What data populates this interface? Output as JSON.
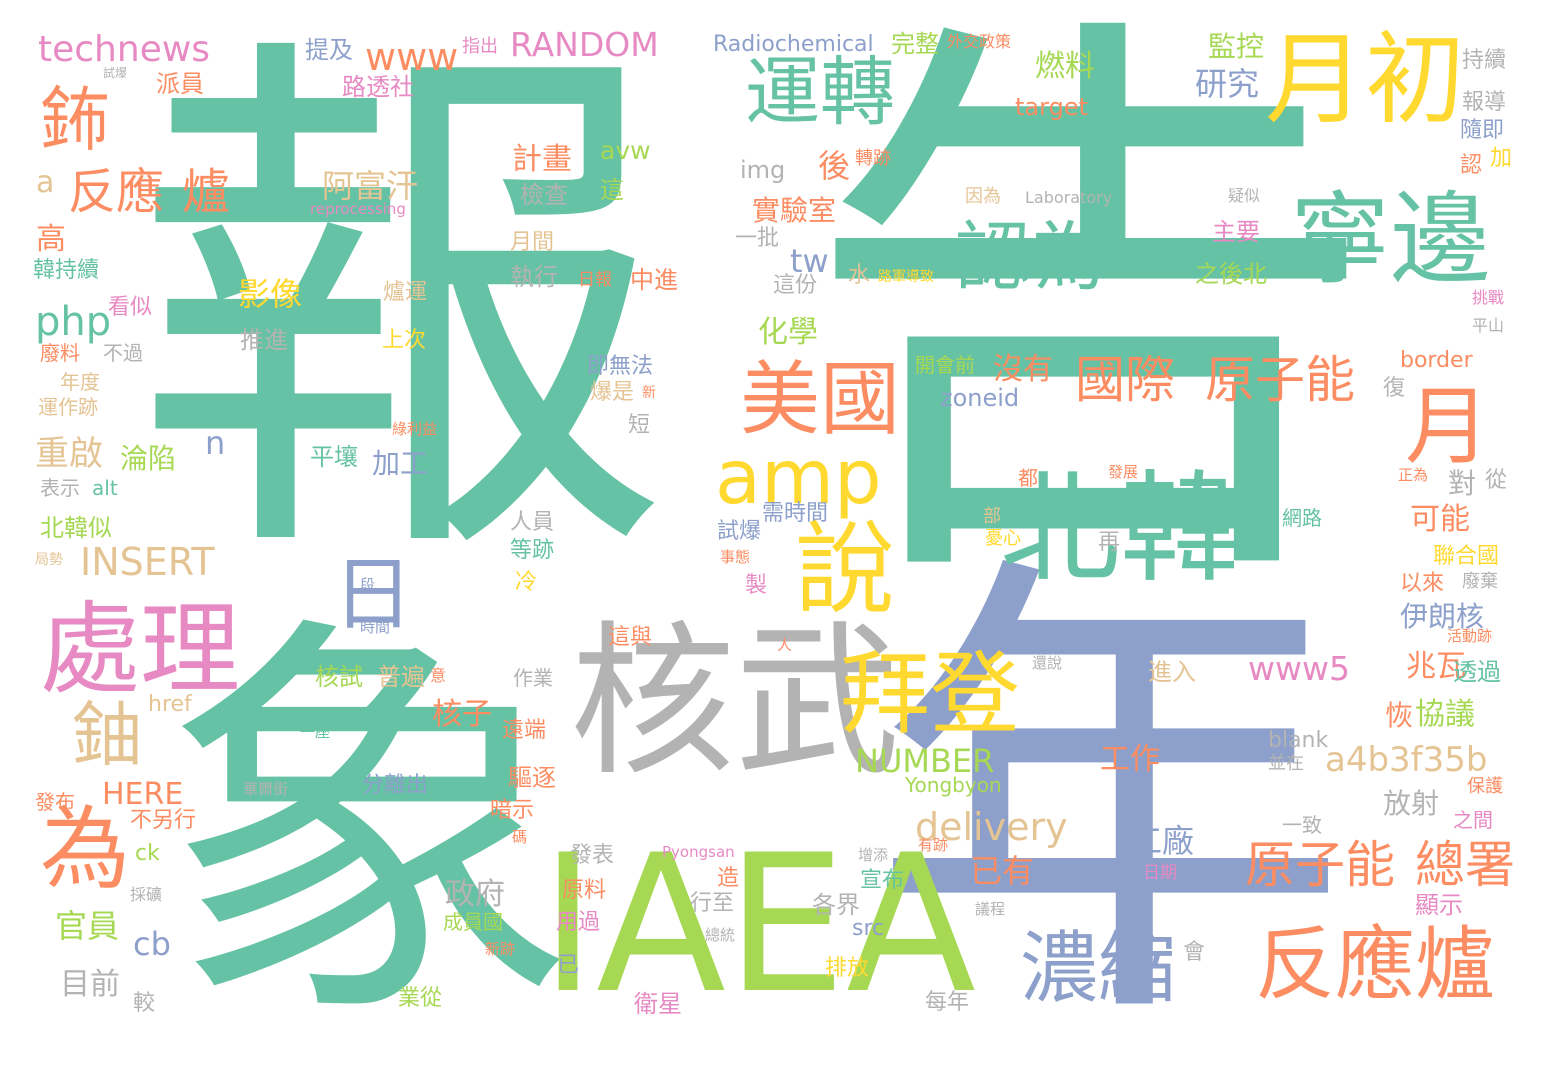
{
  "words": [
    {
      "text": "報",
      "color": "#66c2a5"
    },
    {
      "text": "告",
      "color": "#66c2a5"
    },
    {
      "text": "象",
      "color": "#66c2a5"
    },
    {
      "text": "年",
      "color": "#8da0cb"
    },
    {
      "text": "IAEA",
      "color": "#a6d854"
    },
    {
      "text": "核武",
      "color": "#b3b3b3"
    },
    {
      "text": "北韓",
      "color": "#66c2a5"
    },
    {
      "text": "寧邊",
      "color": "#66c2a5"
    },
    {
      "text": "運轉",
      "color": "#66c2a5"
    },
    {
      "text": "月初",
      "color": "#ffd92f"
    },
    {
      "text": "認為",
      "color": "#66c2a5"
    },
    {
      "text": "處理",
      "color": "#e78ac3"
    },
    {
      "text": "拜登",
      "color": "#ffd92f"
    },
    {
      "text": "說",
      "color": "#ffd92f"
    },
    {
      "text": "為",
      "color": "#fc8d62"
    },
    {
      "text": "美國",
      "color": "#fc8d62"
    },
    {
      "text": "amp",
      "color": "#ffd92f"
    },
    {
      "text": "反應爐",
      "color": "#fc8d62"
    },
    {
      "text": "濃縮",
      "color": "#8da0cb"
    },
    {
      "text": "月",
      "color": "#fc8d62"
    },
    {
      "text": "鈾",
      "color": "#e5c494"
    },
    {
      "text": "鈽",
      "color": "#fc8d62"
    },
    {
      "text": "日",
      "color": "#8da0cb"
    },
    {
      "text": "國際",
      "color": "#fc8d62"
    },
    {
      "text": "原子能",
      "color": "#fc8d62"
    },
    {
      "text": "原子能",
      "color": "#fc8d62"
    },
    {
      "text": "總署",
      "color": "#fc8d62"
    },
    {
      "text": "反應",
      "color": "#fc8d62"
    },
    {
      "text": "爐",
      "color": "#fc8d62"
    },
    {
      "text": "technews",
      "color": "#e78ac3"
    },
    {
      "text": "www",
      "color": "#fc8d62"
    },
    {
      "text": "RANDOM",
      "color": "#e78ac3"
    },
    {
      "text": "Radiochemical",
      "color": "#8da0cb"
    },
    {
      "text": "完整",
      "color": "#a6d854"
    },
    {
      "text": "外交政策",
      "color": "#fc8d62"
    },
    {
      "text": "監控",
      "color": "#a6d854"
    },
    {
      "text": "持續",
      "color": "#b3b3b3"
    },
    {
      "text": "燃料",
      "color": "#a6d854"
    },
    {
      "text": "研究",
      "color": "#8da0cb"
    },
    {
      "text": "target",
      "color": "#fc8d62"
    },
    {
      "text": "報導",
      "color": "#b3b3b3"
    },
    {
      "text": "隨即",
      "color": "#8da0cb"
    },
    {
      "text": "提及",
      "color": "#8da0cb"
    },
    {
      "text": "指出",
      "color": "#e78ac3"
    },
    {
      "text": "路透社",
      "color": "#e78ac3"
    },
    {
      "text": "派員",
      "color": "#fc8d62"
    },
    {
      "text": "試爆",
      "color": "#b3b3b3"
    },
    {
      "text": "計畫",
      "color": "#fc8d62"
    },
    {
      "text": "avw",
      "color": "#a6d854"
    },
    {
      "text": "img",
      "color": "#b3b3b3"
    },
    {
      "text": "後",
      "color": "#fc8d62"
    },
    {
      "text": "轉跡",
      "color": "#fc8d62"
    },
    {
      "text": "檢查",
      "color": "#b3b3b3"
    },
    {
      "text": "這",
      "color": "#a6d854"
    },
    {
      "text": "阿富汗",
      "color": "#e5c494"
    },
    {
      "text": "reprocessing",
      "color": "#e78ac3"
    },
    {
      "text": "實驗室",
      "color": "#fc8d62"
    },
    {
      "text": "因為",
      "color": "#e5c494"
    },
    {
      "text": "Laboratory",
      "color": "#b3b3b3"
    },
    {
      "text": "疑似",
      "color": "#b3b3b3"
    },
    {
      "text": "主要",
      "color": "#e78ac3"
    },
    {
      "text": "認",
      "color": "#fc8d62"
    },
    {
      "text": "加",
      "color": "#ffd92f"
    },
    {
      "text": "a",
      "color": "#e5c494"
    },
    {
      "text": "高",
      "color": "#fc8d62"
    },
    {
      "text": "月間",
      "color": "#e5c494"
    },
    {
      "text": "一批",
      "color": "#b3b3b3"
    },
    {
      "text": "韓持續",
      "color": "#66c2a5"
    },
    {
      "text": "執行",
      "color": "#b3b3b3"
    },
    {
      "text": "日報",
      "color": "#fc8d62"
    },
    {
      "text": "中進",
      "color": "#fc8d62"
    },
    {
      "text": "tw",
      "color": "#8da0cb"
    },
    {
      "text": "水",
      "color": "#e5c494"
    },
    {
      "text": "路軍導致",
      "color": "#ffd92f"
    },
    {
      "text": "之後北",
      "color": "#a6d854"
    },
    {
      "text": "影像",
      "color": "#ffd92f"
    },
    {
      "text": "爐運",
      "color": "#e5c494"
    },
    {
      "text": "這份",
      "color": "#b3b3b3"
    },
    {
      "text": "挑戰",
      "color": "#e78ac3"
    },
    {
      "text": "php",
      "color": "#66c2a5"
    },
    {
      "text": "看似",
      "color": "#e78ac3"
    },
    {
      "text": "化學",
      "color": "#a6d854"
    },
    {
      "text": "平山",
      "color": "#b3b3b3"
    },
    {
      "text": "推進",
      "color": "#b3b3b3"
    },
    {
      "text": "上次",
      "color": "#ffd92f"
    },
    {
      "text": "即無法",
      "color": "#8da0cb"
    },
    {
      "text": "沒有",
      "color": "#fc8d62"
    },
    {
      "text": "開會前",
      "color": "#a6d854"
    },
    {
      "text": "border",
      "color": "#fc8d62"
    },
    {
      "text": "廢料",
      "color": "#fc8d62"
    },
    {
      "text": "不過",
      "color": "#b3b3b3"
    },
    {
      "text": "爆是",
      "color": "#e5c494"
    },
    {
      "text": "新",
      "color": "#fc8d62"
    },
    {
      "text": "zoneid",
      "color": "#8da0cb"
    },
    {
      "text": "復",
      "color": "#b3b3b3"
    },
    {
      "text": "年度",
      "color": "#e5c494"
    },
    {
      "text": "運作跡",
      "color": "#e5c494"
    },
    {
      "text": "短",
      "color": "#b3b3b3"
    },
    {
      "text": "重啟",
      "color": "#e5c494"
    },
    {
      "text": "n",
      "color": "#8da0cb"
    },
    {
      "text": "綠利益",
      "color": "#fc8d62"
    },
    {
      "text": "淪陷",
      "color": "#a6d854"
    },
    {
      "text": "平壤",
      "color": "#66c2a5"
    },
    {
      "text": "加工",
      "color": "#8da0cb"
    },
    {
      "text": "表示",
      "color": "#b3b3b3"
    },
    {
      "text": "alt",
      "color": "#66c2a5"
    },
    {
      "text": "都",
      "color": "#fc8d62"
    },
    {
      "text": "發展",
      "color": "#fc8d62"
    },
    {
      "text": "正為",
      "color": "#fc8d62"
    },
    {
      "text": "對",
      "color": "#b3b3b3"
    },
    {
      "text": "從",
      "color": "#b3b3b3"
    },
    {
      "text": "北韓似",
      "color": "#a6d854"
    },
    {
      "text": "人員",
      "color": "#b3b3b3"
    },
    {
      "text": "需時間",
      "color": "#8da0cb"
    },
    {
      "text": "網路",
      "color": "#66c2a5"
    },
    {
      "text": "可能",
      "color": "#fc8d62"
    },
    {
      "text": "局勢",
      "color": "#e5c494"
    },
    {
      "text": "INSERT",
      "color": "#e5c494"
    },
    {
      "text": "等跡",
      "color": "#66c2a5"
    },
    {
      "text": "試爆",
      "color": "#8da0cb"
    },
    {
      "text": "部",
      "color": "#e5c494"
    },
    {
      "text": "憂心",
      "color": "#ffd92f"
    },
    {
      "text": "再",
      "color": "#b3b3b3"
    },
    {
      "text": "聯合國",
      "color": "#ffd92f"
    },
    {
      "text": "以來",
      "color": "#fc8d62"
    },
    {
      "text": "廢棄",
      "color": "#b3b3b3"
    },
    {
      "text": "冷",
      "color": "#ffd92f"
    },
    {
      "text": "事態",
      "color": "#fc8d62"
    },
    {
      "text": "製",
      "color": "#e78ac3"
    },
    {
      "text": "段",
      "color": "#8da0cb"
    },
    {
      "text": "時間",
      "color": "#8da0cb"
    },
    {
      "text": "伊朗核",
      "color": "#8da0cb"
    },
    {
      "text": "這與",
      "color": "#fc8d62"
    },
    {
      "text": "人",
      "color": "#fc8d62"
    },
    {
      "text": "活動跡",
      "color": "#fc8d62"
    },
    {
      "text": "www5",
      "color": "#e78ac3"
    },
    {
      "text": "兆瓦",
      "color": "#fc8d62"
    },
    {
      "text": "進入",
      "color": "#e5c494"
    },
    {
      "text": "透過",
      "color": "#66c2a5"
    },
    {
      "text": "核試",
      "color": "#a6d854"
    },
    {
      "text": "普遍",
      "color": "#e5c494"
    },
    {
      "text": "意",
      "color": "#fc8d62"
    },
    {
      "text": "作業",
      "color": "#b3b3b3"
    },
    {
      "text": "還說",
      "color": "#b3b3b3"
    },
    {
      "text": "協議",
      "color": "#a6d854"
    },
    {
      "text": "核子",
      "color": "#fc8d62"
    },
    {
      "text": "恢",
      "color": "#fc8d62"
    },
    {
      "text": "href",
      "color": "#e5c494"
    },
    {
      "text": "遠端",
      "color": "#fc8d62"
    },
    {
      "text": "一座",
      "color": "#66c2a5"
    },
    {
      "text": "a4b3f35b",
      "color": "#e5c494"
    },
    {
      "text": "NUMBER",
      "color": "#a6d854"
    },
    {
      "text": "blank",
      "color": "#b3b3b3"
    },
    {
      "text": "工作",
      "color": "#fc8d62"
    },
    {
      "text": "並在",
      "color": "#b3b3b3"
    },
    {
      "text": "Yongbyon",
      "color": "#a6d854"
    },
    {
      "text": "驅逐",
      "color": "#fc8d62"
    },
    {
      "text": "HERE",
      "color": "#fc8d62"
    },
    {
      "text": "華爾街",
      "color": "#b3b3b3"
    },
    {
      "text": "分離出",
      "color": "#8da0cb"
    },
    {
      "text": "發布",
      "color": "#fc8d62"
    },
    {
      "text": "放射",
      "color": "#b3b3b3"
    },
    {
      "text": "保護",
      "color": "#fc8d62"
    },
    {
      "text": "暗示",
      "color": "#fc8d62"
    },
    {
      "text": "不另行",
      "color": "#fc8d62"
    },
    {
      "text": "delivery",
      "color": "#e5c494"
    },
    {
      "text": "之間",
      "color": "#e78ac3"
    },
    {
      "text": "碼",
      "color": "#fc8d62"
    },
    {
      "text": "一致",
      "color": "#b3b3b3"
    },
    {
      "text": "ck",
      "color": "#a6d854"
    },
    {
      "text": "工廠",
      "color": "#8da0cb"
    },
    {
      "text": "發表",
      "color": "#b3b3b3"
    },
    {
      "text": "Pyongsan",
      "color": "#e78ac3"
    },
    {
      "text": "增添",
      "color": "#b3b3b3"
    },
    {
      "text": "有跡",
      "color": "#fc8d62"
    },
    {
      "text": "採礦",
      "color": "#b3b3b3"
    },
    {
      "text": "政府",
      "color": "#b3b3b3"
    },
    {
      "text": "原料",
      "color": "#fc8d62"
    },
    {
      "text": "造",
      "color": "#fc8d62"
    },
    {
      "text": "宣布",
      "color": "#66c2a5"
    },
    {
      "text": "已有",
      "color": "#fc8d62"
    },
    {
      "text": "日期",
      "color": "#e78ac3"
    },
    {
      "text": "顯示",
      "color": "#e78ac3"
    },
    {
      "text": "官員",
      "color": "#a6d854"
    },
    {
      "text": "成員國",
      "color": "#a6d854"
    },
    {
      "text": "用過",
      "color": "#e78ac3"
    },
    {
      "text": "行至",
      "color": "#b3b3b3"
    },
    {
      "text": "各界",
      "color": "#b3b3b3"
    },
    {
      "text": "src",
      "color": "#8da0cb"
    },
    {
      "text": "cb",
      "color": "#8da0cb"
    },
    {
      "text": "總統",
      "color": "#b3b3b3"
    },
    {
      "text": "議程",
      "color": "#b3b3b3"
    },
    {
      "text": "會",
      "color": "#b3b3b3"
    },
    {
      "text": "新跡",
      "color": "#fc8d62"
    },
    {
      "text": "排放",
      "color": "#ffd92f"
    },
    {
      "text": "目前",
      "color": "#b3b3b3"
    },
    {
      "text": "已",
      "color": "#8da0cb"
    },
    {
      "text": "業從",
      "color": "#a6d854"
    },
    {
      "text": "較",
      "color": "#b3b3b3"
    },
    {
      "text": "衛星",
      "color": "#e78ac3"
    },
    {
      "text": "每年",
      "color": "#b3b3b3"
    }
  ]
}
